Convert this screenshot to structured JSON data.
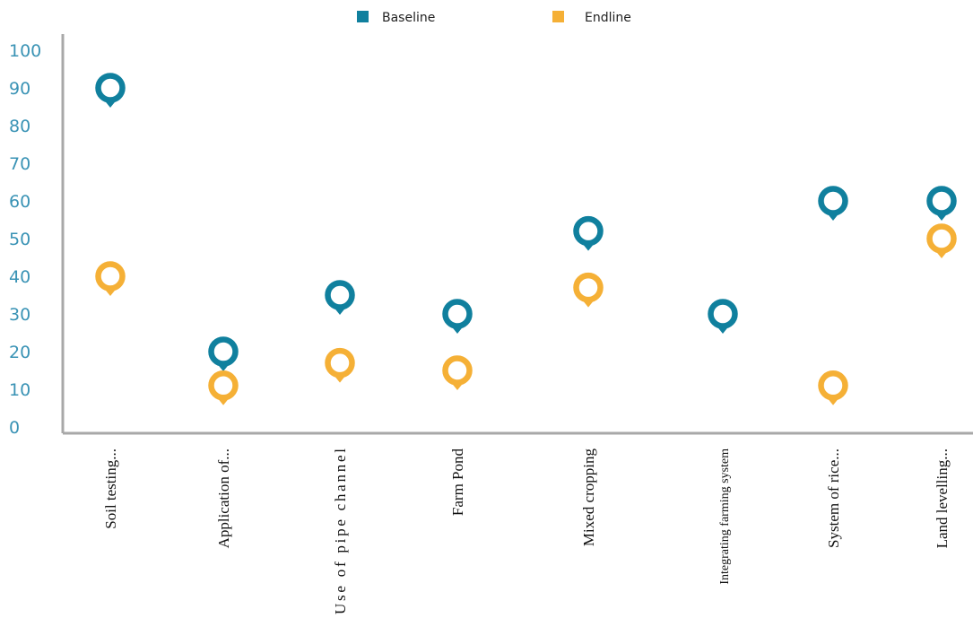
{
  "chart_data": {
    "type": "scatter",
    "categories": [
      "Soil testing...",
      "Application of...",
      "Use of pipe channel",
      "Farm Pond",
      "Mixed cropping",
      "Integrating farming system",
      "System of rice...",
      "Land levelling..."
    ],
    "series": [
      {
        "name": "Baseline",
        "color": "#10809e",
        "values": [
          90,
          20,
          35,
          30,
          52,
          30,
          60,
          60
        ]
      },
      {
        "name": "Endline",
        "color": "#f5b036",
        "values": [
          40,
          11,
          17,
          15,
          37,
          null,
          11,
          50
        ]
      }
    ],
    "y_ticks": [
      0,
      10,
      20,
      30,
      40,
      50,
      60,
      70,
      80,
      90,
      100
    ],
    "ylim": [
      0,
      100
    ],
    "grid": false,
    "legend_position": "top-center",
    "marker": "map-pin",
    "axis_color": "#a8a8a8",
    "tick_label_color": "#3a93b5"
  }
}
